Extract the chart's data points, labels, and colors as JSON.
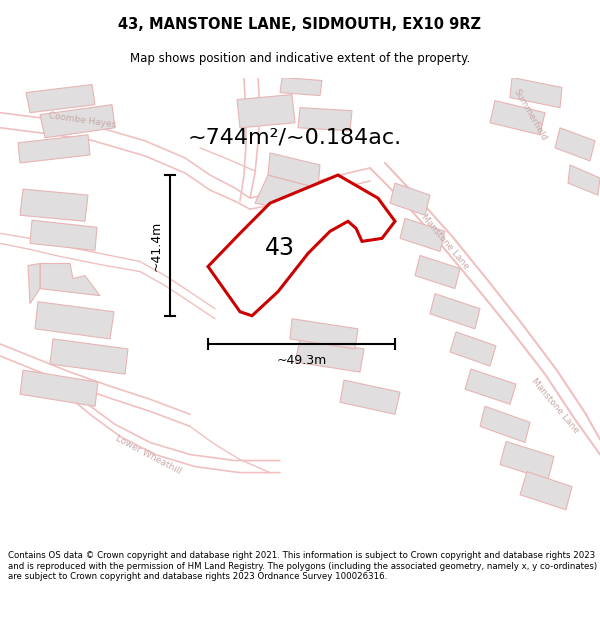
{
  "title": "43, MANSTONE LANE, SIDMOUTH, EX10 9RZ",
  "subtitle": "Map shows position and indicative extent of the property.",
  "area_text": "~744m²/~0.184ac.",
  "width_label": "~49.3m",
  "height_label": "~41.4m",
  "property_number": "43",
  "footer_text": "Contains OS data © Crown copyright and database right 2021. This information is subject to Crown copyright and database rights 2023 and is reproduced with the permission of HM Land Registry. The polygons (including the associated geometry, namely x, y co-ordinates) are subject to Crown copyright and database rights 2023 Ordnance Survey 100026316.",
  "map_bg": "#f2efef",
  "block_fill": "#e0dede",
  "block_edge": "#e8b4b4",
  "road_color": "#f0c0c0",
  "road_lw": 1.0,
  "prop_edge": "#cc0000",
  "prop_fill": "#ffffff",
  "label_color": "#c8a8a8",
  "dim_color": "#000000"
}
